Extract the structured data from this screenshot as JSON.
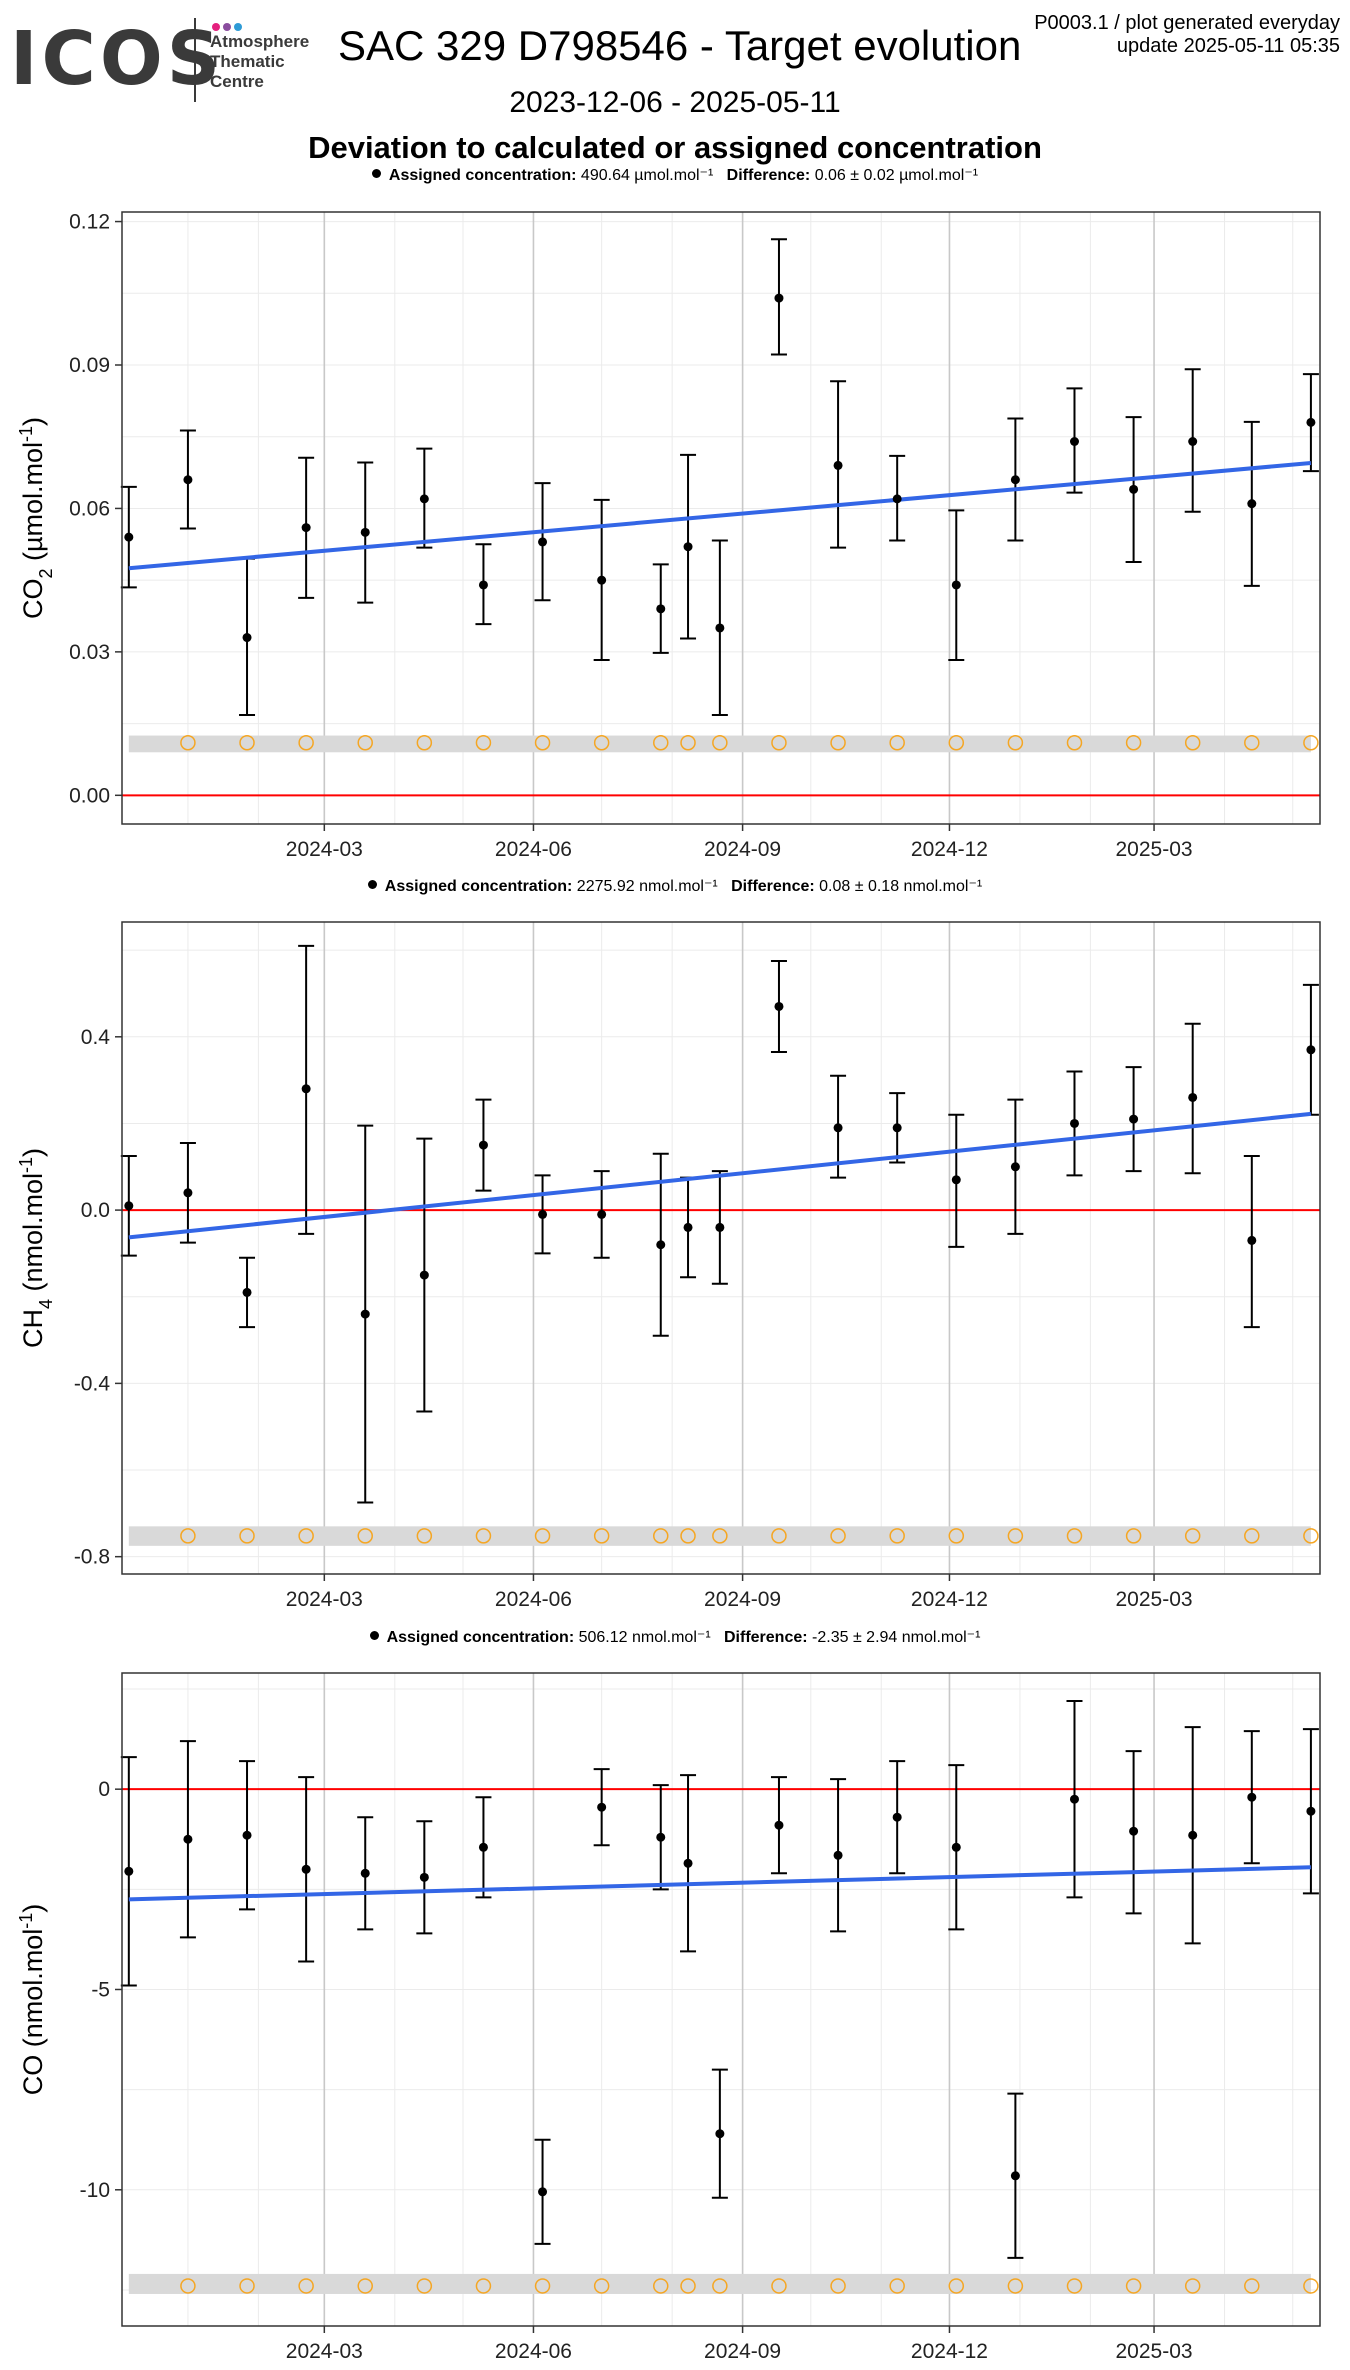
{
  "logo": {
    "word": "ICOS",
    "lines": [
      "Atmosphere",
      "Thematic",
      "Centre"
    ],
    "dot_colors": [
      "#e4207d",
      "#8a4d9e",
      "#2e9bd6"
    ]
  },
  "header": {
    "title": "SAC 329 D798546 - Target evolution",
    "info_line1": "P0003.1 / plot generated everyday",
    "info_line2": "update  2025-05-11 05:35",
    "date_range": "2023-12-06 - 2025-05-11",
    "subtitle": "Deviation to calculated or assigned concentration"
  },
  "legends": [
    {
      "assigned_label": "Assigned concentration:",
      "assigned_value": "490.64 µmol.mol⁻¹",
      "difference_label": "Difference:",
      "difference_value": "0.06 ± 0.02 µmol.mol⁻¹"
    },
    {
      "assigned_label": "Assigned concentration:",
      "assigned_value": "2275.92 nmol.mol⁻¹",
      "difference_label": "Difference:",
      "difference_value": "0.08 ± 0.18 nmol.mol⁻¹"
    },
    {
      "assigned_label": "Assigned concentration:",
      "assigned_value": "506.12 nmol.mol⁻¹",
      "difference_label": "Difference:",
      "difference_value": "-2.35 ± 2.94 nmol.mol⁻¹"
    }
  ],
  "colors": {
    "points": "#000000",
    "trend": "#3366e6",
    "zero_line": "#ff0000",
    "open_markers": "#f5a623",
    "band": "#d9d9d9",
    "grid": "#ebebeb",
    "grid_major": "#c8c8c8"
  },
  "chart_data": [
    {
      "type": "scatter",
      "ylabel_main": "CO",
      "ylabel_sub": "2",
      "ylabel_unit": " (µmol.mol",
      "ylabel_sup": "-1",
      "ylabel_end": ")",
      "xlim": [
        "2023-12-03",
        "2025-05-13"
      ],
      "x_ticks": [
        "2024-03",
        "2024-06",
        "2024-09",
        "2024-12",
        "2025-03"
      ],
      "y_ticks": [
        "0.00",
        "0.03",
        "0.06",
        "0.09",
        "0.12"
      ],
      "y_tick_values": [
        0,
        0.03,
        0.06,
        0.09,
        0.12
      ],
      "ylim": [
        -0.006,
        0.122
      ],
      "points": [
        {
          "x": "2023-12-06",
          "y": 0.054,
          "low": 0.0435,
          "high": 0.0645
        },
        {
          "x": "2024-01-01",
          "y": 0.066,
          "low": 0.0558,
          "high": 0.0763
        },
        {
          "x": "2024-01-27",
          "y": 0.033,
          "low": 0.0168,
          "high": 0.0495
        },
        {
          "x": "2024-02-22",
          "y": 0.056,
          "low": 0.0413,
          "high": 0.0706
        },
        {
          "x": "2024-03-19",
          "y": 0.055,
          "low": 0.0403,
          "high": 0.0696
        },
        {
          "x": "2024-04-14",
          "y": 0.062,
          "low": 0.0518,
          "high": 0.0725
        },
        {
          "x": "2024-05-10",
          "y": 0.044,
          "low": 0.0358,
          "high": 0.0525
        },
        {
          "x": "2024-06-05",
          "y": 0.053,
          "low": 0.0408,
          "high": 0.0653
        },
        {
          "x": "2024-07-01",
          "y": 0.045,
          "low": 0.0283,
          "high": 0.0618
        },
        {
          "x": "2024-07-27",
          "y": 0.039,
          "low": 0.0298,
          "high": 0.0483
        },
        {
          "x": "2024-08-08",
          "y": 0.052,
          "low": 0.0328,
          "high": 0.0712
        },
        {
          "x": "2024-08-22",
          "y": 0.035,
          "low": 0.0168,
          "high": 0.0533
        },
        {
          "x": "2024-09-17",
          "y": 0.104,
          "low": 0.0922,
          "high": 0.1163
        },
        {
          "x": "2024-10-13",
          "y": 0.069,
          "low": 0.0518,
          "high": 0.0866
        },
        {
          "x": "2024-11-08",
          "y": 0.062,
          "low": 0.0533,
          "high": 0.071
        },
        {
          "x": "2024-12-04",
          "y": 0.044,
          "low": 0.0283,
          "high": 0.0596
        },
        {
          "x": "2024-12-30",
          "y": 0.066,
          "low": 0.0533,
          "high": 0.0788
        },
        {
          "x": "2025-01-25",
          "y": 0.074,
          "low": 0.0633,
          "high": 0.0851
        },
        {
          "x": "2025-02-20",
          "y": 0.064,
          "low": 0.0488,
          "high": 0.0791
        },
        {
          "x": "2025-03-18",
          "y": 0.074,
          "low": 0.0593,
          "high": 0.0891
        },
        {
          "x": "2025-04-13",
          "y": 0.061,
          "low": 0.0438,
          "high": 0.0781
        },
        {
          "x": "2025-05-09",
          "y": 0.078,
          "low": 0.0678,
          "high": 0.0881
        }
      ],
      "trend": {
        "x": [
          "2023-12-06",
          "2025-05-09"
        ],
        "y": [
          0.0475,
          0.0695
        ]
      },
      "zero_line": 0,
      "band": {
        "y_low": 0.009,
        "y_high": 0.0125,
        "marker_y": 0.011
      },
      "open_marker_dates": [
        "2024-01-01",
        "2024-01-27",
        "2024-02-22",
        "2024-03-19",
        "2024-04-14",
        "2024-05-10",
        "2024-06-05",
        "2024-07-01",
        "2024-07-27",
        "2024-08-08",
        "2024-08-22",
        "2024-09-17",
        "2024-10-13",
        "2024-11-08",
        "2024-12-04",
        "2024-12-30",
        "2025-01-25",
        "2025-02-20",
        "2025-03-18",
        "2025-04-13",
        "2025-05-09"
      ]
    },
    {
      "type": "scatter",
      "ylabel_main": "CH",
      "ylabel_sub": "4",
      "ylabel_unit": " (nmol.mol",
      "ylabel_sup": "-1",
      "ylabel_end": ")",
      "xlim": [
        "2023-12-03",
        "2025-05-13"
      ],
      "x_ticks": [
        "2024-03",
        "2024-06",
        "2024-09",
        "2024-12",
        "2025-03"
      ],
      "y_ticks": [
        "-0.8",
        "-0.4",
        "0.0",
        "0.4"
      ],
      "y_tick_values": [
        -0.8,
        -0.4,
        0,
        0.4
      ],
      "ylim": [
        -0.84,
        0.665
      ],
      "points": [
        {
          "x": "2023-12-06",
          "y": 0.01,
          "low": -0.105,
          "high": 0.125
        },
        {
          "x": "2024-01-01",
          "y": 0.04,
          "low": -0.075,
          "high": 0.155
        },
        {
          "x": "2024-01-27",
          "y": -0.19,
          "low": -0.27,
          "high": -0.11
        },
        {
          "x": "2024-02-22",
          "y": 0.28,
          "low": -0.055,
          "high": 0.61
        },
        {
          "x": "2024-03-19",
          "y": -0.24,
          "low": -0.675,
          "high": 0.195
        },
        {
          "x": "2024-04-14",
          "y": -0.15,
          "low": -0.465,
          "high": 0.165
        },
        {
          "x": "2024-05-10",
          "y": 0.15,
          "low": 0.045,
          "high": 0.255
        },
        {
          "x": "2024-06-05",
          "y": -0.01,
          "low": -0.1,
          "high": 0.08
        },
        {
          "x": "2024-07-01",
          "y": -0.01,
          "low": -0.11,
          "high": 0.09
        },
        {
          "x": "2024-07-27",
          "y": -0.08,
          "low": -0.29,
          "high": 0.13
        },
        {
          "x": "2024-08-08",
          "y": -0.04,
          "low": -0.155,
          "high": 0.075
        },
        {
          "x": "2024-08-22",
          "y": -0.04,
          "low": -0.17,
          "high": 0.09
        },
        {
          "x": "2024-09-17",
          "y": 0.47,
          "low": 0.365,
          "high": 0.575
        },
        {
          "x": "2024-10-13",
          "y": 0.19,
          "low": 0.075,
          "high": 0.31
        },
        {
          "x": "2024-11-08",
          "y": 0.19,
          "low": 0.11,
          "high": 0.27
        },
        {
          "x": "2024-12-04",
          "y": 0.07,
          "low": -0.085,
          "high": 0.22
        },
        {
          "x": "2024-12-30",
          "y": 0.1,
          "low": -0.055,
          "high": 0.255
        },
        {
          "x": "2025-01-25",
          "y": 0.2,
          "low": 0.08,
          "high": 0.32
        },
        {
          "x": "2025-02-20",
          "y": 0.21,
          "low": 0.09,
          "high": 0.33
        },
        {
          "x": "2025-03-18",
          "y": 0.26,
          "low": 0.085,
          "high": 0.43
        },
        {
          "x": "2025-04-13",
          "y": -0.07,
          "low": -0.27,
          "high": 0.125
        },
        {
          "x": "2025-05-09",
          "y": 0.37,
          "low": 0.22,
          "high": 0.52
        }
      ],
      "trend": {
        "x": [
          "2023-12-06",
          "2025-05-09"
        ],
        "y": [
          -0.063,
          0.222
        ]
      },
      "zero_line": 0,
      "band": {
        "y_low": -0.775,
        "y_high": -0.73,
        "marker_y": -0.752
      },
      "open_marker_dates": [
        "2024-01-01",
        "2024-01-27",
        "2024-02-22",
        "2024-03-19",
        "2024-04-14",
        "2024-05-10",
        "2024-06-05",
        "2024-07-01",
        "2024-07-27",
        "2024-08-08",
        "2024-08-22",
        "2024-09-17",
        "2024-10-13",
        "2024-11-08",
        "2024-12-04",
        "2024-12-30",
        "2025-01-25",
        "2025-02-20",
        "2025-03-18",
        "2025-04-13",
        "2025-05-09"
      ]
    },
    {
      "type": "scatter",
      "ylabel_main": "CO",
      "ylabel_sub": "",
      "ylabel_unit": " (nmol.mol",
      "ylabel_sup": "-1",
      "ylabel_end": ")",
      "xlim": [
        "2023-12-03",
        "2025-05-13"
      ],
      "x_ticks": [
        "2024-03",
        "2024-06",
        "2024-09",
        "2024-12",
        "2025-03"
      ],
      "y_ticks": [
        "-10",
        "-5",
        "0"
      ],
      "y_tick_values": [
        -10,
        -5,
        0
      ],
      "ylim": [
        -13.4,
        2.9
      ],
      "points": [
        {
          "x": "2023-12-06",
          "y": -2.05,
          "low": -4.9,
          "high": 0.8
        },
        {
          "x": "2024-01-01",
          "y": -1.25,
          "low": -3.7,
          "high": 1.2
        },
        {
          "x": "2024-01-27",
          "y": -1.15,
          "low": -3.0,
          "high": 0.7
        },
        {
          "x": "2024-02-22",
          "y": -2.0,
          "low": -4.3,
          "high": 0.3
        },
        {
          "x": "2024-03-19",
          "y": -2.1,
          "low": -3.5,
          "high": -0.7
        },
        {
          "x": "2024-04-14",
          "y": -2.2,
          "low": -3.6,
          "high": -0.8
        },
        {
          "x": "2024-05-10",
          "y": -1.45,
          "low": -2.7,
          "high": -0.2
        },
        {
          "x": "2024-06-05",
          "y": -10.05,
          "low": -11.35,
          "high": -8.75
        },
        {
          "x": "2024-07-01",
          "y": -0.45,
          "low": -1.4,
          "high": 0.5
        },
        {
          "x": "2024-07-27",
          "y": -1.2,
          "low": -2.5,
          "high": 0.1
        },
        {
          "x": "2024-08-08",
          "y": -1.85,
          "low": -4.05,
          "high": 0.35
        },
        {
          "x": "2024-08-22",
          "y": -8.6,
          "low": -10.2,
          "high": -7.0
        },
        {
          "x": "2024-09-17",
          "y": -0.9,
          "low": -2.1,
          "high": 0.3
        },
        {
          "x": "2024-10-13",
          "y": -1.65,
          "low": -3.55,
          "high": 0.25
        },
        {
          "x": "2024-11-08",
          "y": -0.7,
          "low": -2.1,
          "high": 0.7
        },
        {
          "x": "2024-12-04",
          "y": -1.45,
          "low": -3.5,
          "high": 0.6
        },
        {
          "x": "2024-12-30",
          "y": -9.65,
          "low": -11.7,
          "high": -7.6
        },
        {
          "x": "2025-01-25",
          "y": -0.25,
          "low": -2.7,
          "high": 2.2
        },
        {
          "x": "2025-02-20",
          "y": -1.05,
          "low": -3.1,
          "high": 0.95
        },
        {
          "x": "2025-03-18",
          "y": -1.15,
          "low": -3.85,
          "high": 1.55
        },
        {
          "x": "2025-04-13",
          "y": -0.2,
          "low": -1.85,
          "high": 1.45
        },
        {
          "x": "2025-05-09",
          "y": -0.55,
          "low": -2.6,
          "high": 1.5
        }
      ],
      "trend": {
        "x": [
          "2023-12-06",
          "2025-05-09"
        ],
        "y": [
          -2.75,
          -1.95
        ]
      },
      "zero_line": 0,
      "band": {
        "y_low": -12.6,
        "y_high": -12.1,
        "marker_y": -12.4
      },
      "open_marker_dates": [
        "2024-01-01",
        "2024-01-27",
        "2024-02-22",
        "2024-03-19",
        "2024-04-14",
        "2024-05-10",
        "2024-06-05",
        "2024-07-01",
        "2024-07-27",
        "2024-08-08",
        "2024-08-22",
        "2024-09-17",
        "2024-10-13",
        "2024-11-08",
        "2024-12-04",
        "2024-12-30",
        "2025-01-25",
        "2025-02-20",
        "2025-03-18",
        "2025-04-13",
        "2025-05-09"
      ]
    }
  ]
}
